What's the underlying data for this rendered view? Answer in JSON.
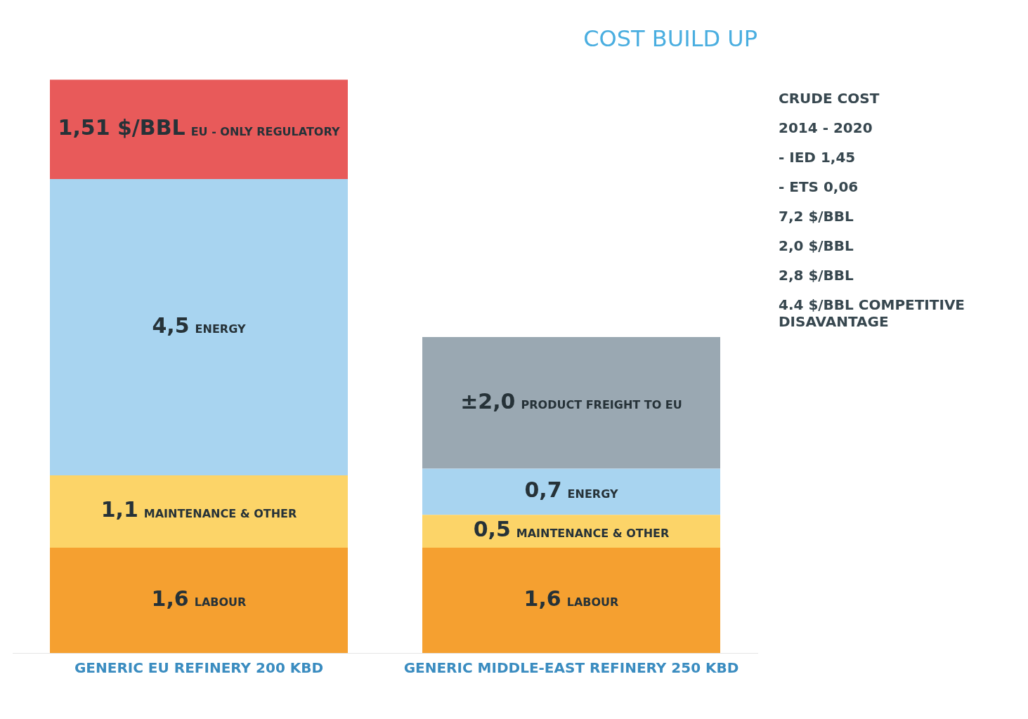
{
  "chart_data": {
    "type": "bar",
    "title": "COST BUILD UP",
    "stacked": true,
    "legend": false,
    "grid": false,
    "categories": [
      "GENERIC EU REFINERY 200 KBD",
      "GENERIC MIDDLE-EAST REFINERY 250 KBD"
    ],
    "series": [
      {
        "name": "LABOUR",
        "color": "#f5a030",
        "values": [
          1.6,
          1.6
        ],
        "value_labels": [
          "1,6",
          "1,6"
        ]
      },
      {
        "name": "MAINTENANCE & OTHER",
        "color": "#fcd468",
        "values": [
          1.1,
          0.5
        ],
        "value_labels": [
          "1,1",
          "0,5"
        ]
      },
      {
        "name": "ENERGY",
        "color": "#a8d4f0",
        "values": [
          4.5,
          0.7
        ],
        "value_labels": [
          "4,5",
          "0,7"
        ]
      },
      {
        "name": "PRODUCT FREIGHT TO EU",
        "color": "#9aa8b2",
        "values": [
          null,
          2.0
        ],
        "value_labels": [
          null,
          "±2,0"
        ]
      },
      {
        "name": "EU - ONLY REGULATORY",
        "color": "#e85a5a",
        "values": [
          1.51,
          null
        ],
        "value_labels": [
          "1,51 $/BBL",
          null
        ]
      }
    ],
    "annotations": [
      "CRUDE COST",
      "2014 - 2020",
      "- IED 1,45",
      "- ETS 0,06",
      "7,2 $/BBL",
      "2,0 $/BBL",
      "2,8 $/BBL",
      "4.4 $/BBL COMPETITIVE DISAVANTAGE"
    ]
  }
}
